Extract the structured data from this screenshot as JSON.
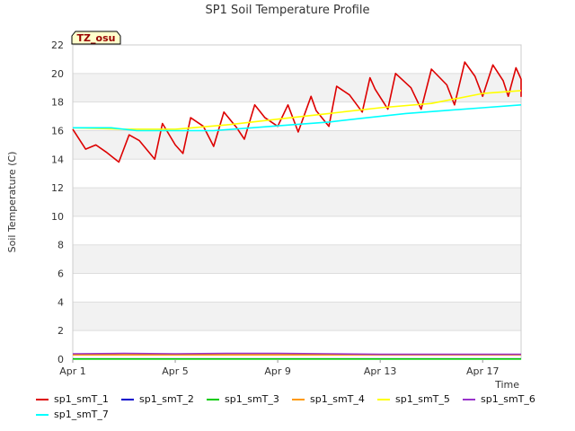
{
  "chart_data": {
    "type": "line",
    "title": "SP1 Soil Temperature Profile",
    "xlabel": "Time",
    "ylabel": "Soil Temperature (C)",
    "xlim": [
      1,
      18.5
    ],
    "ylim": [
      0,
      22
    ],
    "x_ticks": [
      {
        "value": 1,
        "label": "Apr 1"
      },
      {
        "value": 5,
        "label": "Apr 5"
      },
      {
        "value": 9,
        "label": "Apr 9"
      },
      {
        "value": 13,
        "label": "Apr 13"
      },
      {
        "value": 17,
        "label": "Apr 17"
      }
    ],
    "y_ticks": [
      0,
      2,
      4,
      6,
      8,
      10,
      12,
      14,
      16,
      18,
      20,
      22
    ],
    "grid": true,
    "annotation": "TZ_osu",
    "legend_position": "bottom",
    "series": [
      {
        "name": "sp1_smT_1",
        "color": "#dd0000",
        "x": [
          1.0,
          1.5,
          1.9,
          2.3,
          2.8,
          3.2,
          3.6,
          4.2,
          4.5,
          5.0,
          5.3,
          5.6,
          6.1,
          6.5,
          6.9,
          7.4,
          7.7,
          8.1,
          8.5,
          9.0,
          9.4,
          9.8,
          10.3,
          10.5,
          11.0,
          11.3,
          11.8,
          12.3,
          12.6,
          12.8,
          13.3,
          13.6,
          14.2,
          14.6,
          15.0,
          15.6,
          15.9,
          16.3,
          16.7,
          17.0,
          17.4,
          17.8,
          18.0,
          18.3,
          18.6,
          18.9,
          19.2,
          19.4,
          19.9
        ],
        "y": [
          16.1,
          14.7,
          15.0,
          14.5,
          13.8,
          15.7,
          15.3,
          14.0,
          16.5,
          15.0,
          14.4,
          16.9,
          16.3,
          14.9,
          17.3,
          16.2,
          15.4,
          17.8,
          16.9,
          16.3,
          17.8,
          15.9,
          18.4,
          17.4,
          16.3,
          19.1,
          18.5,
          17.3,
          19.7,
          18.9,
          17.5,
          20.0,
          19.0,
          17.5,
          20.3,
          19.2,
          17.8,
          20.8,
          19.8,
          18.4,
          20.6,
          19.5,
          18.4,
          20.4,
          19.6,
          18.4,
          19.0,
          18.4,
          18.4
        ]
      },
      {
        "name": "sp1_smT_2",
        "color": "#0000cc",
        "x": [
          1.0,
          18.5
        ],
        "y": [
          0.02,
          0.02
        ]
      },
      {
        "name": "sp1_smT_3",
        "color": "#00cc00",
        "x": [
          1.0,
          18.5
        ],
        "y": [
          0.01,
          0.01
        ]
      },
      {
        "name": "sp1_smT_4",
        "color": "#ff9900",
        "x": [
          1.0,
          18.5
        ],
        "y": [
          0.3,
          0.3
        ]
      },
      {
        "name": "sp1_smT_5",
        "color": "#ffff00",
        "x": [
          1.0,
          3.0,
          5.0,
          7.0,
          9.0,
          11.0,
          13.0,
          15.0,
          17.0,
          18.5
        ],
        "y": [
          16.2,
          16.1,
          16.1,
          16.4,
          16.8,
          17.2,
          17.6,
          17.9,
          18.6,
          18.8
        ]
      },
      {
        "name": "sp1_smT_6",
        "color": "#9933cc",
        "x": [
          1.0,
          3.0,
          5.0,
          7.0,
          9.0,
          11.0,
          13.0,
          15.0,
          17.0,
          18.5
        ],
        "y": [
          0.38,
          0.4,
          0.38,
          0.4,
          0.4,
          0.38,
          0.34,
          0.34,
          0.34,
          0.34
        ]
      },
      {
        "name": "sp1_smT_7",
        "color": "#00ffff",
        "x": [
          1.0,
          2.5,
          3.5,
          5.0,
          6.5,
          8.0,
          9.5,
          11.0,
          12.5,
          14.0,
          15.5,
          17.0,
          18.5
        ],
        "y": [
          16.2,
          16.2,
          16.0,
          16.0,
          16.0,
          16.2,
          16.4,
          16.6,
          16.9,
          17.2,
          17.4,
          17.6,
          17.8
        ]
      }
    ]
  }
}
